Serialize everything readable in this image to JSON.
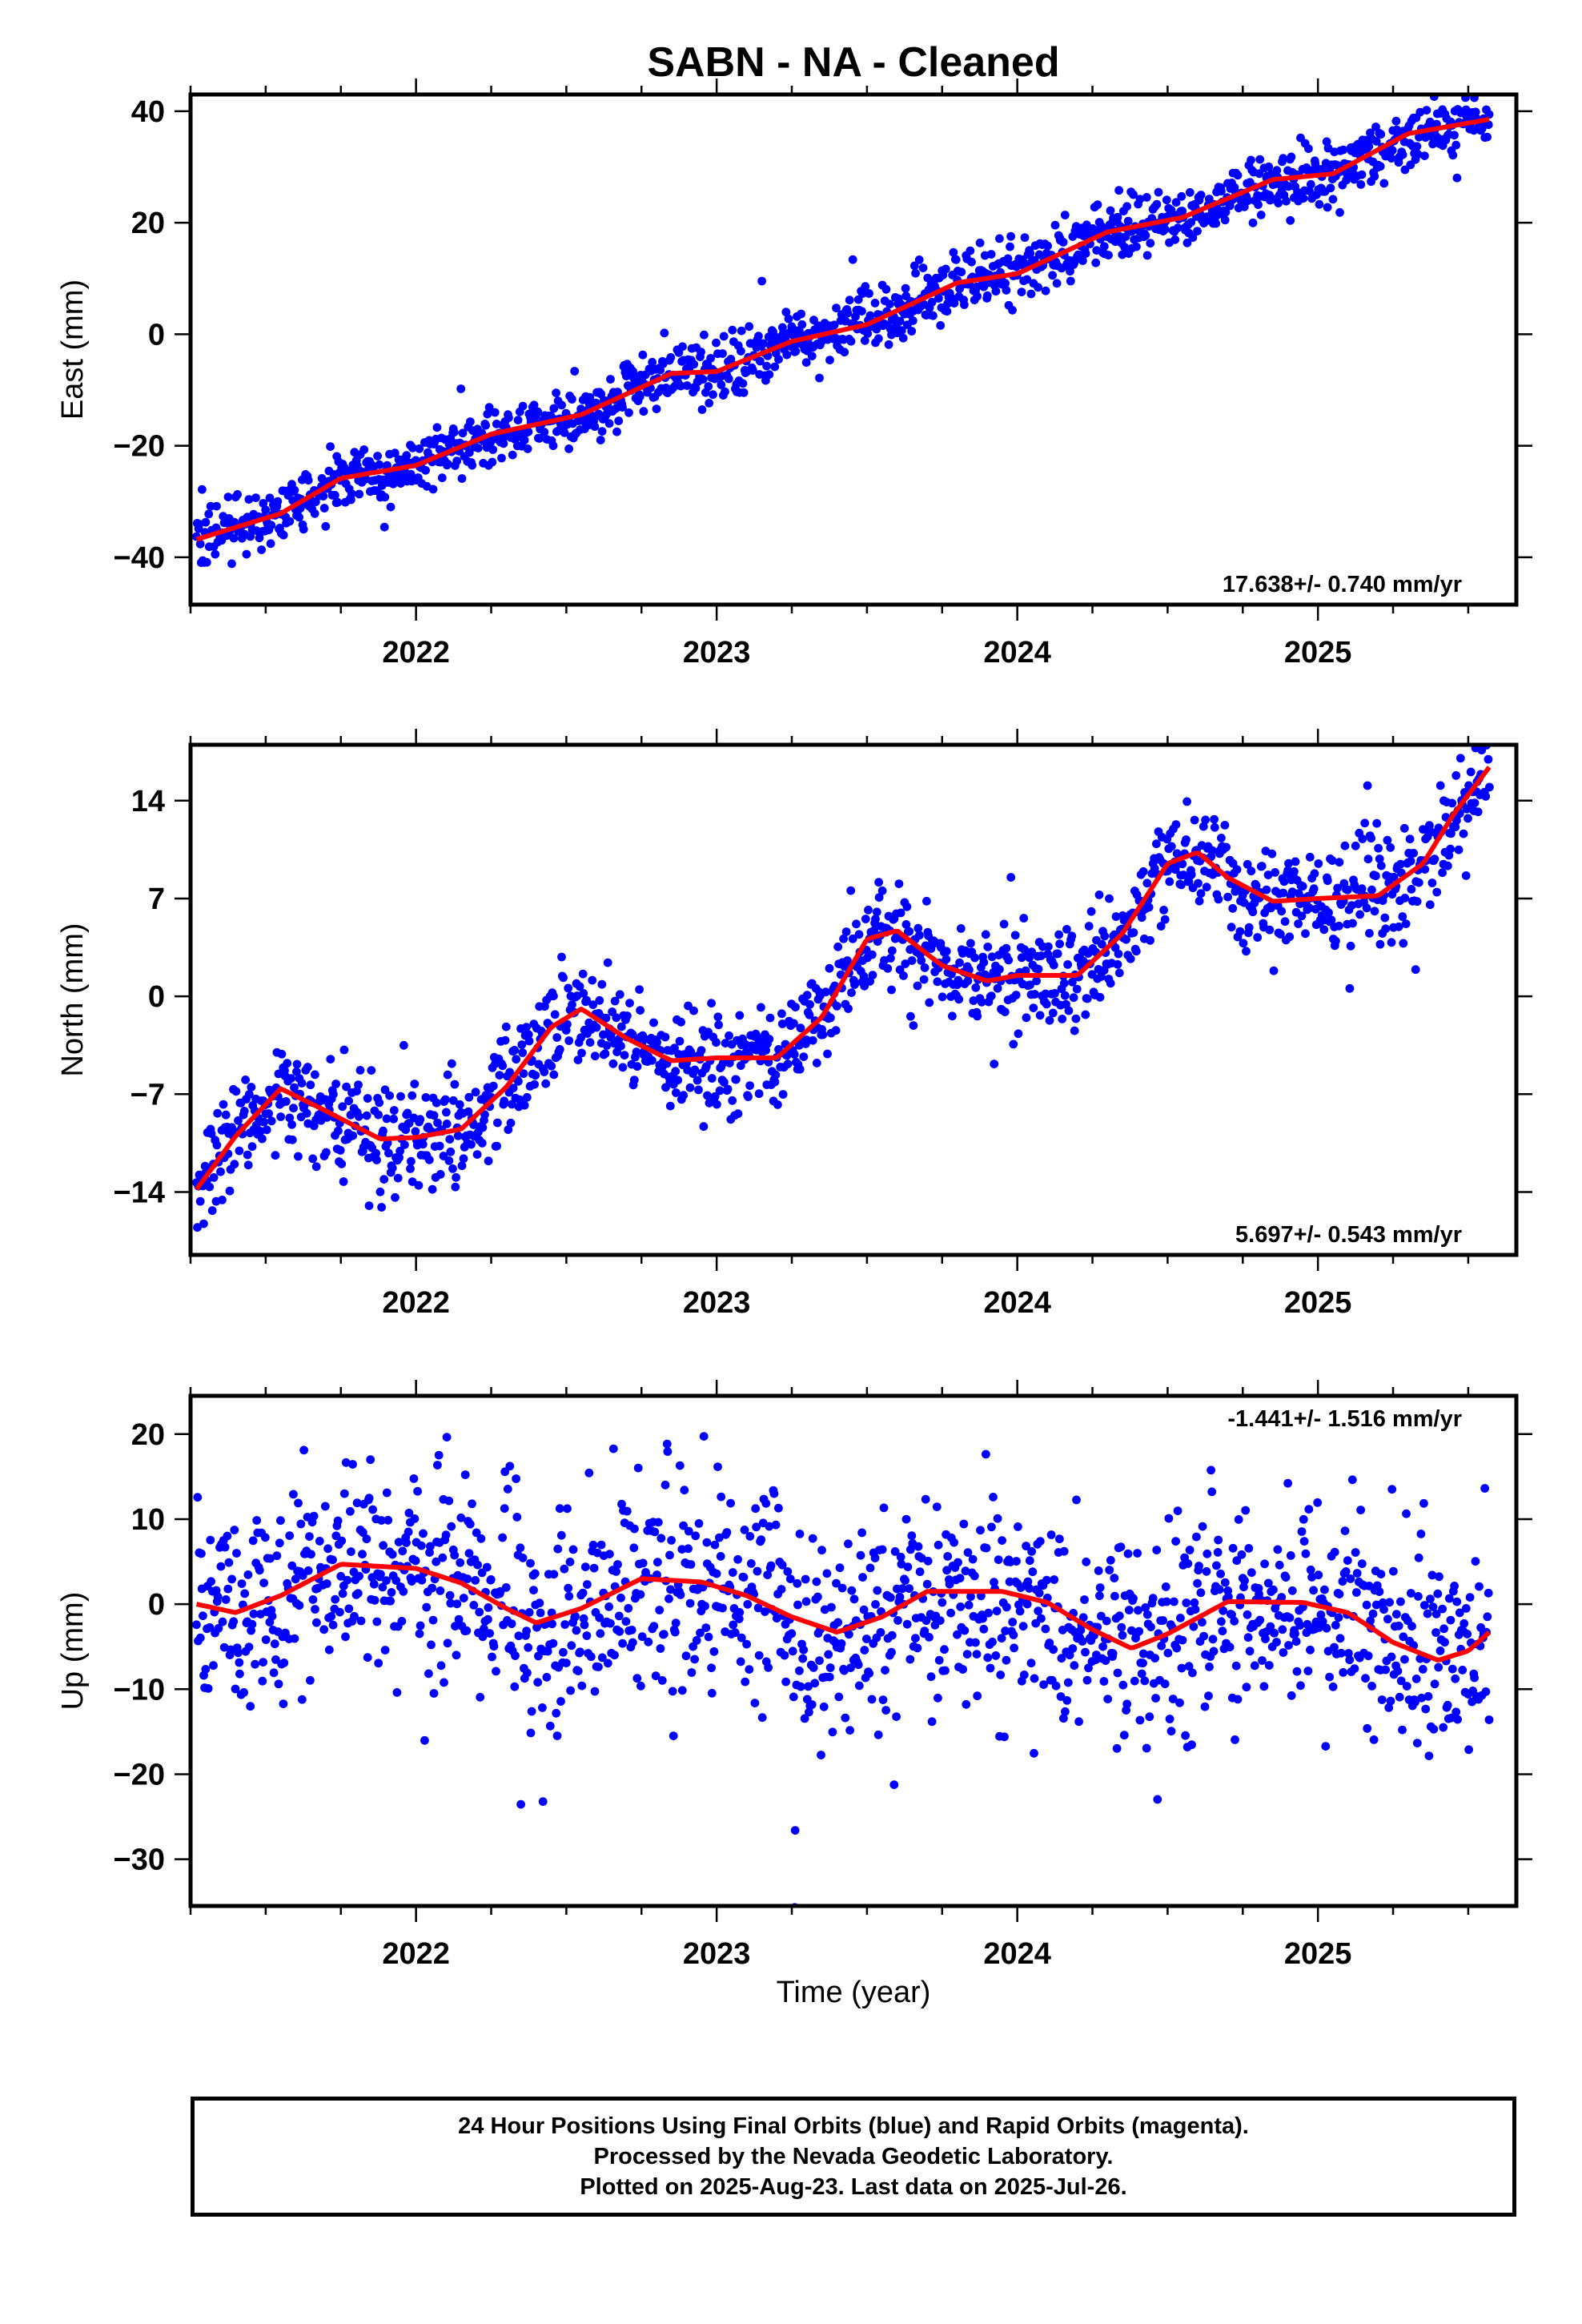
{
  "title": "SABN  - NA - Cleaned",
  "xlabel": "Time (year)",
  "footer": [
    "24 Hour Positions Using Final Orbits (blue) and Rapid Orbits (magenta).",
    "Processed by the Nevada Geodetic Laboratory.",
    "Plotted on 2025-Aug-23. Last data on 2025-Jul-26."
  ],
  "colors": {
    "points": "#0000ff",
    "fit": "#ff0000",
    "frame": "#000000"
  },
  "chart_data": [
    {
      "type": "scatter",
      "ylabel": "East (mm)",
      "rate": "17.638+/- 0.740 mm/yr",
      "xlim": [
        2021.25,
        2025.66
      ],
      "ylim": [
        -48.5,
        43
      ],
      "xticks": [
        2022,
        2023,
        2024,
        2025
      ],
      "yticks": [
        -40,
        -20,
        0,
        20,
        40
      ],
      "data_start": 2021.27,
      "data_end": 2025.57,
      "trend_rate": 17.638,
      "trend_at_start": -36.6,
      "seasonal": [
        [
          2021.27,
          -0.2
        ],
        [
          2021.55,
          -0.5
        ],
        [
          2021.75,
          2.3
        ],
        [
          2022.0,
          0.2
        ],
        [
          2022.25,
          1.4
        ],
        [
          2022.55,
          -0.4
        ],
        [
          2022.85,
          1.7
        ],
        [
          2023.0,
          -0.6
        ],
        [
          2023.25,
          0.4
        ],
        [
          2023.5,
          -1.0
        ],
        [
          2023.8,
          1.2
        ],
        [
          2024.0,
          -0.7
        ],
        [
          2024.3,
          1.5
        ],
        [
          2024.55,
          -0.3
        ],
        [
          2024.85,
          1.2
        ],
        [
          2025.05,
          -1.3
        ],
        [
          2025.3,
          1.5
        ],
        [
          2025.57,
          -0.7
        ]
      ],
      "scatter_sd": 2.6
    },
    {
      "type": "scatter",
      "ylabel": "North (mm)",
      "rate": "5.697+/- 0.543 mm/yr",
      "xlim": [
        2021.25,
        2025.66
      ],
      "ylim": [
        -18.5,
        18
      ],
      "xticks": [
        2022,
        2023,
        2024,
        2025
      ],
      "yticks": [
        -14,
        -7,
        0,
        7,
        14
      ],
      "data_start": 2021.27,
      "data_end": 2025.57,
      "fit": [
        [
          2021.27,
          -13.8
        ],
        [
          2021.4,
          -10.0
        ],
        [
          2021.55,
          -6.6
        ],
        [
          2021.7,
          -8.2
        ],
        [
          2021.88,
          -10.2
        ],
        [
          2022.0,
          -10.1
        ],
        [
          2022.15,
          -9.5
        ],
        [
          2022.3,
          -6.5
        ],
        [
          2022.45,
          -2.2
        ],
        [
          2022.55,
          -0.9
        ],
        [
          2022.7,
          -3.0
        ],
        [
          2022.85,
          -4.6
        ],
        [
          2023.0,
          -4.4
        ],
        [
          2023.2,
          -4.4
        ],
        [
          2023.35,
          -1.5
        ],
        [
          2023.5,
          4.1
        ],
        [
          2023.6,
          4.7
        ],
        [
          2023.75,
          2.2
        ],
        [
          2023.9,
          1.1
        ],
        [
          2024.0,
          1.5
        ],
        [
          2024.2,
          1.5
        ],
        [
          2024.35,
          4.5
        ],
        [
          2024.5,
          9.5
        ],
        [
          2024.6,
          10.3
        ],
        [
          2024.7,
          8.5
        ],
        [
          2024.85,
          6.8
        ],
        [
          2025.0,
          7.0
        ],
        [
          2025.2,
          7.2
        ],
        [
          2025.35,
          9.5
        ],
        [
          2025.45,
          13.0
        ],
        [
          2025.57,
          16.4
        ]
      ],
      "scatter_sd": 1.8
    },
    {
      "type": "scatter",
      "ylabel": "Up (mm)",
      "rate": "-1.441+/- 1.516 mm/yr",
      "xlim": [
        2021.25,
        2025.66
      ],
      "ylim": [
        -35.5,
        24.5
      ],
      "xticks": [
        2022,
        2023,
        2024,
        2025
      ],
      "yticks": [
        -30,
        -20,
        -10,
        0,
        10,
        20
      ],
      "data_start": 2021.27,
      "data_end": 2025.57,
      "fit": [
        [
          2021.27,
          0.0
        ],
        [
          2021.4,
          -1.0
        ],
        [
          2021.55,
          1.0
        ],
        [
          2021.75,
          4.7
        ],
        [
          2022.0,
          4.2
        ],
        [
          2022.15,
          2.5
        ],
        [
          2022.3,
          -0.5
        ],
        [
          2022.4,
          -2.2
        ],
        [
          2022.55,
          -0.5
        ],
        [
          2022.75,
          3.0
        ],
        [
          2022.95,
          2.6
        ],
        [
          2023.1,
          1.0
        ],
        [
          2023.25,
          -1.5
        ],
        [
          2023.4,
          -3.3
        ],
        [
          2023.55,
          -1.5
        ],
        [
          2023.7,
          1.5
        ],
        [
          2023.95,
          1.5
        ],
        [
          2024.1,
          0.2
        ],
        [
          2024.25,
          -3.0
        ],
        [
          2024.38,
          -5.2
        ],
        [
          2024.5,
          -3.5
        ],
        [
          2024.7,
          0.3
        ],
        [
          2024.95,
          0.2
        ],
        [
          2025.1,
          -1.0
        ],
        [
          2025.25,
          -4.5
        ],
        [
          2025.4,
          -6.6
        ],
        [
          2025.5,
          -5.5
        ],
        [
          2025.57,
          -3.3
        ]
      ],
      "scatter_sd": 6.0
    }
  ]
}
